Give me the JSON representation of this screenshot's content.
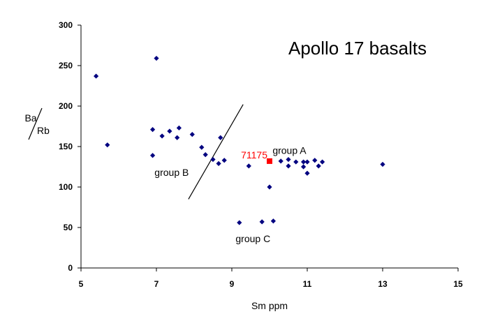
{
  "chart_data": {
    "type": "scatter",
    "title": "Apollo 17 basalts",
    "xlabel": "Sm ppm",
    "ylabel_top": "Ba",
    "ylabel_bottom": "Rb",
    "xlim": [
      5,
      15
    ],
    "ylim": [
      0,
      300
    ],
    "x_ticks": [
      "5",
      "7",
      "9",
      "11",
      "13",
      "15"
    ],
    "x_tick_values": [
      5,
      7,
      9,
      11,
      13,
      15
    ],
    "y_ticks": [
      "0",
      "50",
      "100",
      "150",
      "200",
      "250",
      "300"
    ],
    "y_tick_values": [
      0,
      50,
      100,
      150,
      200,
      250,
      300
    ],
    "grid": false,
    "series": [
      {
        "color": "#000080",
        "marker": "diamond",
        "points": [
          [
            5.4,
            237
          ],
          [
            5.7,
            152
          ],
          [
            6.9,
            171
          ],
          [
            6.9,
            139
          ],
          [
            7.0,
            259
          ],
          [
            7.15,
            163
          ],
          [
            7.35,
            169
          ],
          [
            7.55,
            161
          ],
          [
            7.6,
            173
          ],
          [
            7.95,
            165
          ],
          [
            8.2,
            149
          ],
          [
            8.3,
            140
          ],
          [
            8.5,
            134
          ],
          [
            8.65,
            129
          ],
          [
            8.7,
            161
          ],
          [
            8.8,
            133
          ],
          [
            9.2,
            56
          ],
          [
            9.45,
            126
          ],
          [
            9.8,
            57
          ],
          [
            10.0,
            100
          ],
          [
            10.1,
            58
          ],
          [
            10.3,
            132
          ],
          [
            10.5,
            134
          ],
          [
            10.5,
            126
          ],
          [
            10.7,
            131
          ],
          [
            10.9,
            131
          ],
          [
            10.9,
            125
          ],
          [
            11.0,
            131
          ],
          [
            11.0,
            117
          ],
          [
            11.2,
            133
          ],
          [
            11.3,
            126
          ],
          [
            11.4,
            131
          ],
          [
            13.0,
            128
          ]
        ]
      },
      {
        "name": "71175",
        "color": "#ff0000",
        "marker": "square",
        "points": [
          [
            10.0,
            132
          ]
        ]
      }
    ],
    "divider_line": {
      "from": [
        7.85,
        85
      ],
      "to": [
        9.3,
        202
      ]
    },
    "annotations": [
      {
        "text": "group A",
        "x": 10.08,
        "y": 141
      },
      {
        "text": "group B",
        "x": 6.95,
        "y": 114
      },
      {
        "text": "group C",
        "x": 9.1,
        "y": 32
      }
    ],
    "colors": {
      "axis": "#000000",
      "points": "#000080",
      "highlight": "#ff0000"
    }
  }
}
